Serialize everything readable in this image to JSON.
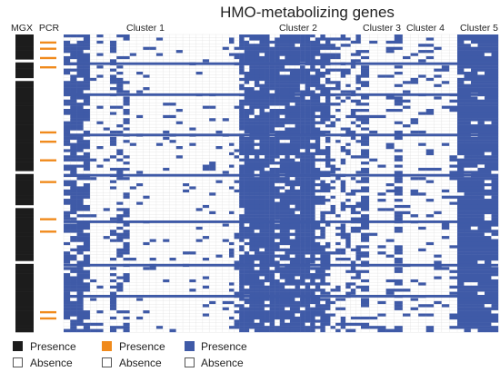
{
  "chart_data": {
    "type": "heatmap",
    "title": "HMO-metabolizing genes",
    "column_groups": [
      {
        "label": "MGX",
        "columns": 1
      },
      {
        "label": "PCR",
        "columns": 1
      },
      {
        "label": "Cluster 1",
        "columns": 25
      },
      {
        "label": "Cluster 2",
        "columns": 26
      },
      {
        "label": "Cluster 3",
        "columns": 5
      },
      {
        "label": "Cluster 4",
        "columns": 7
      },
      {
        "label": "Cluster 5",
        "columns": 6
      }
    ],
    "rows": 96,
    "mgx_presence_rows": [
      0,
      1,
      2,
      3,
      4,
      5,
      6,
      7,
      9,
      10,
      11,
      12,
      13,
      15,
      16,
      17,
      18,
      19,
      20,
      21,
      22,
      23,
      24,
      25,
      26,
      27,
      28,
      29,
      30,
      31,
      32,
      33,
      34,
      35,
      36,
      37,
      38,
      39,
      40,
      41,
      42,
      43,
      45,
      46,
      47,
      48,
      49,
      50,
      51,
      52,
      53,
      54,
      56,
      57,
      58,
      59,
      60,
      61,
      62,
      63,
      64,
      65,
      66,
      67,
      68,
      69,
      70,
      71,
      72,
      74,
      75,
      76,
      77,
      78,
      79,
      80,
      81,
      82,
      83,
      84,
      85,
      86,
      87,
      88,
      89,
      90,
      91,
      92,
      93,
      94,
      95
    ],
    "pcr_presence_rows": [
      2,
      4,
      7,
      10,
      31,
      34,
      40,
      47,
      59,
      63,
      89,
      91
    ],
    "legend": [
      {
        "label": "Presence",
        "color": "#1c1c1c"
      },
      {
        "label": "Absence",
        "color": "#ffffff"
      },
      {
        "label": "Presence",
        "color": "#f08a1c"
      },
      {
        "label": "Absence",
        "color": "#ffffff"
      },
      {
        "label": "Presence",
        "color": "#3f5aa7"
      },
      {
        "label": "Absence",
        "color": "#ffffff"
      }
    ],
    "colors": {
      "mgx_presence": "#1c1c1c",
      "pcr_presence": "#f08a1c",
      "gene_presence": "#3f5aa7",
      "absence": "#ffffff",
      "grid": "#e2e2e2"
    }
  }
}
